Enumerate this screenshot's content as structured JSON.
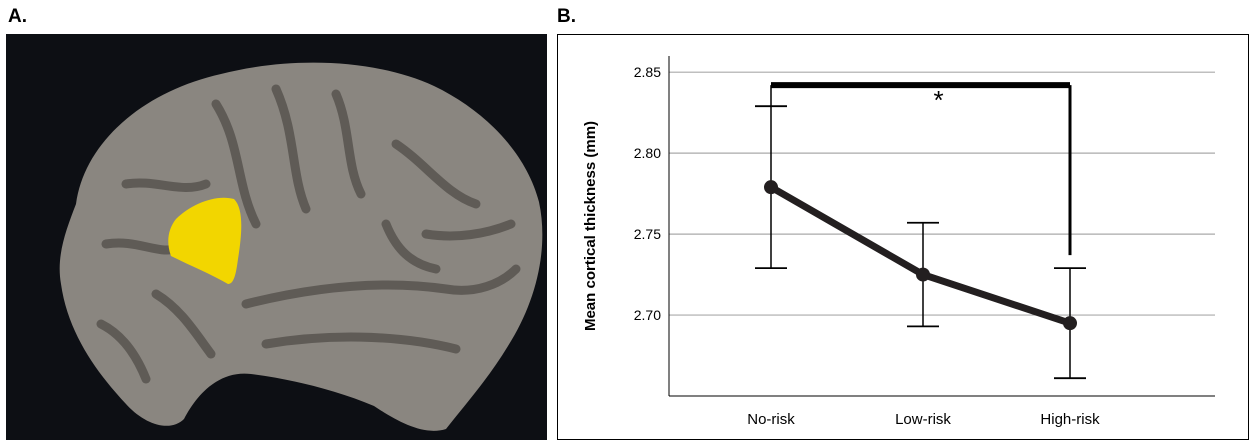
{
  "panels": {
    "a_label": "A.",
    "b_label": "B."
  },
  "brain_image": {
    "background_color": "#0d0f14",
    "cortex_color": "#8a8680",
    "sulci_color": "#5f5b56",
    "highlight_color": "#f2d600"
  },
  "chart_data": {
    "type": "line",
    "categories": [
      "No-risk",
      "Low-risk",
      "High-risk"
    ],
    "series": [
      {
        "values": [
          2.779,
          2.725,
          2.695
        ],
        "error_upper": [
          2.829,
          2.757,
          2.729
        ],
        "error_lower": [
          2.729,
          2.693,
          2.661
        ],
        "color": "#231f20"
      }
    ],
    "ylabel": "Mean cortical thickness (mm)",
    "xlabel": "",
    "ylim": [
      2.65,
      2.86
    ],
    "yticks": [
      2.7,
      2.75,
      2.8,
      2.85
    ],
    "ytick_labels": [
      "2.70",
      "2.75",
      "2.80",
      "2.85"
    ],
    "grid": true,
    "grid_color": "#aaaaaa",
    "significance": {
      "from": "No-risk",
      "to": "High-risk",
      "label": "*",
      "bar_y": 2.842,
      "left_drop_y": 2.829,
      "right_drop_y": 2.737
    }
  }
}
